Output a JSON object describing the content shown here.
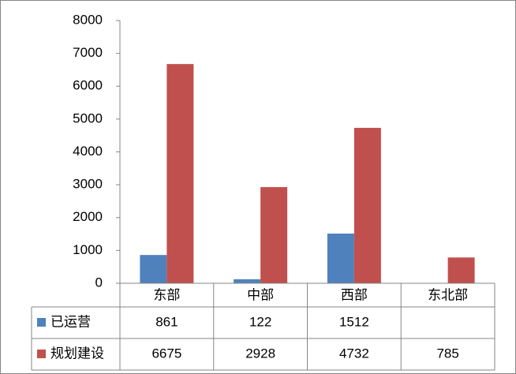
{
  "chart_data": {
    "type": "bar",
    "categories": [
      "东部",
      "中部",
      "西部",
      "东北部"
    ],
    "series": [
      {
        "name": "已运营",
        "color": "#4f81bd",
        "values": [
          861,
          122,
          1512,
          null
        ]
      },
      {
        "name": "规划建设",
        "color": "#c0504d",
        "values": [
          6675,
          2928,
          4732,
          785
        ]
      }
    ],
    "ylim": [
      0,
      8000
    ],
    "yticks": [
      0,
      1000,
      2000,
      3000,
      4000,
      5000,
      6000,
      7000,
      8000
    ],
    "grid": false,
    "data_table": true
  }
}
